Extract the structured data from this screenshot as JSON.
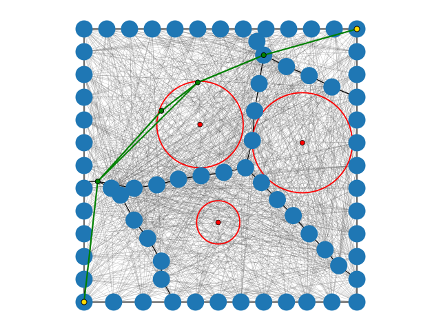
{
  "diagram": {
    "type": "visibility-graph-path-planning",
    "title": "",
    "colors": {
      "background": "#ffffff",
      "frame": "#000000",
      "edges": "#555555",
      "nodes": "#1f77b4",
      "path": "#008000",
      "waypoints": "#008000",
      "endpoints": "#ffd700",
      "circles": "#ff0000",
      "circle_centers": "#ff0000"
    },
    "boundary_nodes": [
      [
        0,
        0
      ],
      [
        1,
        0
      ],
      [
        2,
        0
      ],
      [
        3,
        0
      ],
      [
        4,
        0
      ],
      [
        5,
        0
      ],
      [
        6,
        0
      ],
      [
        7,
        0
      ],
      [
        8,
        0
      ],
      [
        9,
        0
      ],
      [
        10,
        0
      ],
      [
        11,
        0
      ],
      [
        12,
        0
      ],
      [
        0,
        1
      ],
      [
        0,
        2
      ],
      [
        0,
        3
      ],
      [
        0,
        4
      ],
      [
        0,
        5
      ],
      [
        0,
        6
      ],
      [
        0,
        7
      ],
      [
        0,
        8
      ],
      [
        0,
        9
      ],
      [
        0,
        10
      ],
      [
        0,
        11
      ],
      [
        0,
        12
      ],
      [
        12,
        1
      ],
      [
        12,
        2
      ],
      [
        12,
        3
      ],
      [
        12,
        4
      ],
      [
        12,
        5
      ],
      [
        12,
        6
      ],
      [
        12,
        7
      ],
      [
        12,
        8
      ],
      [
        12,
        9
      ],
      [
        12,
        10
      ],
      [
        12,
        11
      ],
      [
        12,
        12
      ],
      [
        1.3,
        12
      ],
      [
        2.6,
        12
      ],
      [
        3.9,
        12
      ],
      [
        4.9,
        12
      ],
      [
        5.9,
        12
      ],
      [
        6.9,
        12
      ],
      [
        7.9,
        12
      ],
      [
        8.9,
        12
      ],
      [
        9.8,
        12
      ],
      [
        10.9,
        12
      ]
    ],
    "interior_nodes": [
      [
        7.6,
        0.55
      ],
      [
        7.9,
        1.15
      ],
      [
        8.9,
        1.65
      ],
      [
        9.9,
        2.05
      ],
      [
        10.9,
        2.55
      ],
      [
        7.7,
        2.4
      ],
      [
        7.5,
        3.6
      ],
      [
        7.4,
        4.9
      ],
      [
        7.1,
        6.1
      ],
      [
        6.15,
        6.3
      ],
      [
        5.15,
        6.45
      ],
      [
        4.15,
        6.6
      ],
      [
        3.2,
        6.85
      ],
      [
        2.2,
        7.0
      ],
      [
        1.2,
        7.0
      ],
      [
        1.2,
        7.0
      ],
      [
        1.6,
        7.3
      ],
      [
        2.2,
        8.4
      ],
      [
        2.8,
        9.2
      ],
      [
        3.4,
        10.2
      ],
      [
        3.4,
        11.0
      ],
      [
        7.8,
        6.75
      ],
      [
        8.5,
        7.5
      ],
      [
        9.2,
        8.2
      ],
      [
        9.9,
        9.0
      ],
      [
        10.6,
        9.7
      ],
      [
        11.2,
        10.4
      ]
    ],
    "circles": [
      {
        "cx": 5.1,
        "cy": 4.2,
        "r": 1.9
      },
      {
        "cx": 9.6,
        "cy": 5.0,
        "r": 2.2
      },
      {
        "cx": 5.9,
        "cy": 8.5,
        "r": 0.95
      }
    ],
    "path": [
      [
        0,
        12
      ],
      [
        0.6,
        6.7
      ],
      [
        3.4,
        3.6
      ],
      [
        5.0,
        2.35
      ],
      [
        7.9,
        1.15
      ],
      [
        12,
        0
      ]
    ],
    "endpoints": [
      [
        0,
        12
      ],
      [
        12,
        0
      ]
    ]
  }
}
